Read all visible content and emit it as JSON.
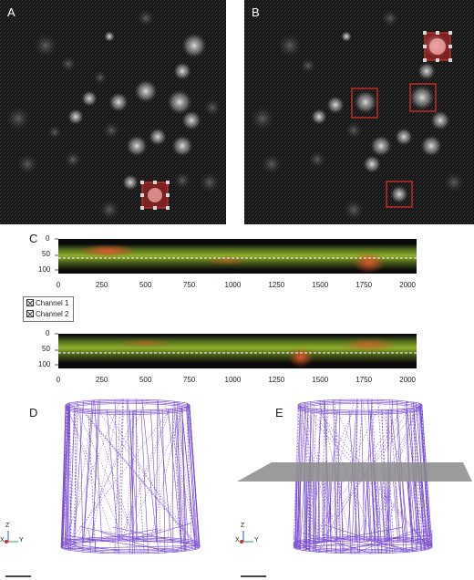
{
  "panels": {
    "a": {
      "letter": "A"
    },
    "b": {
      "letter": "B"
    },
    "c": {
      "letter": "C"
    },
    "d": {
      "letter": "D"
    },
    "e": {
      "letter": "E"
    }
  },
  "colors": {
    "roi": "#d8302a",
    "mesh": "#7b4fd0",
    "green_channel": "#8fae2a",
    "red_channel": "#d7452a",
    "plane": "#8a8a8a"
  },
  "legend": {
    "items": [
      "Channel 1",
      "Channel 2"
    ]
  },
  "profile_axes": {
    "x_ticks": [
      "0",
      "250",
      "500",
      "750",
      "1000",
      "1250",
      "1500",
      "1750",
      "2000"
    ],
    "y_ticks": [
      "0",
      "50",
      "100"
    ]
  },
  "axis_triad": {
    "z_label": "Z",
    "x_label": "X",
    "y_label": "Y"
  }
}
